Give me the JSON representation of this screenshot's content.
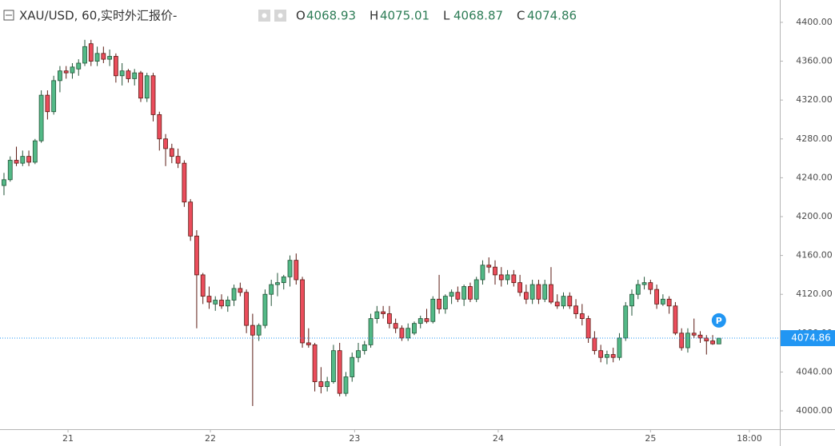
{
  "header": {
    "title": "XAU/USD, 60,实时外汇报价-",
    "ohlc_labels": [
      "O",
      "H",
      "L",
      "C"
    ]
  },
  "chart_data": {
    "type": "candlestick",
    "up_color": "#53b987",
    "down_color": "#eb4d5c",
    "last_price_color": "#2196f3",
    "marker_label": "P",
    "xlim": [
      -0.64,
      124.8
    ],
    "xticks": [
      {
        "value": 10.3,
        "label": "21"
      },
      {
        "value": 33.2,
        "label": "22"
      },
      {
        "value": 56.4,
        "label": "23"
      },
      {
        "value": 79.5,
        "label": "24"
      },
      {
        "value": 104.0,
        "label": "25"
      },
      {
        "value": 119.9,
        "label": "18:00"
      }
    ],
    "ylim": [
      3981.1,
      4423.0
    ],
    "yticks": [
      {
        "value": 4000,
        "label": "4000.00"
      },
      {
        "value": 4040,
        "label": "4040.00"
      },
      {
        "value": 4080,
        "label": "4080.00"
      },
      {
        "value": 4120,
        "label": "4120.00"
      },
      {
        "value": 4160,
        "label": "4160.00"
      },
      {
        "value": 4200,
        "label": "4200.00"
      },
      {
        "value": 4240,
        "label": "4240.00"
      },
      {
        "value": 4280,
        "label": "4280.00"
      },
      {
        "value": 4320,
        "label": "4320.00"
      },
      {
        "value": 4360,
        "label": "4360.00"
      },
      {
        "value": 4400,
        "label": "4400.00"
      }
    ],
    "series": {
      "open": [
        4232,
        4238,
        4258,
        4255,
        4262,
        4256,
        4278,
        4325,
        4308,
        4340,
        4350,
        4348,
        4352,
        4358,
        4378,
        4360,
        4368,
        4362,
        4365,
        4345,
        4350,
        4342,
        4348,
        4322,
        4345,
        4305,
        4280,
        4270,
        4262,
        4255,
        4215,
        4180,
        4140,
        4118,
        4110,
        4114,
        4108,
        4114,
        4126,
        4122,
        4088,
        4078,
        4088,
        4120,
        4130,
        4132,
        4138,
        4155,
        4135,
        4070,
        4068,
        4030,
        4025,
        4030,
        4062,
        4018,
        4035,
        4055,
        4062,
        4068,
        4095,
        4102,
        4100,
        4090,
        4085,
        4075,
        4080,
        4090,
        4095,
        4092,
        4115,
        4105,
        4118,
        4122,
        4115,
        4128,
        4115,
        4135,
        4150,
        4148,
        4140,
        4135,
        4140,
        4132,
        4122,
        4115,
        4130,
        4115,
        4130,
        4112,
        4108,
        4118,
        4108,
        4100,
        4095,
        4075,
        4062,
        4055,
        4058,
        4055,
        4075,
        4108,
        4120,
        4130,
        4132,
        4125,
        4110,
        4115,
        4108,
        4080,
        4065,
        4080,
        4078,
        4075,
        4072,
        4068.93
      ],
      "high": [
        4245,
        4262,
        4272,
        4268,
        4268,
        4280,
        4330,
        4330,
        4345,
        4355,
        4355,
        4358,
        4362,
        4382,
        4382,
        4375,
        4375,
        4372,
        4368,
        4358,
        4352,
        4352,
        4350,
        4348,
        4348,
        4308,
        4285,
        4275,
        4270,
        4258,
        4218,
        4186,
        4142,
        4128,
        4118,
        4120,
        4118,
        4130,
        4132,
        4125,
        4100,
        4090,
        4125,
        4135,
        4142,
        4140,
        4160,
        4162,
        4138,
        4085,
        4070,
        4045,
        4035,
        4068,
        4070,
        4040,
        4060,
        4070,
        4072,
        4100,
        4108,
        4108,
        4108,
        4095,
        4088,
        4090,
        4092,
        4098,
        4105,
        4118,
        4140,
        4120,
        4125,
        4128,
        4130,
        4132,
        4138,
        4155,
        4158,
        4155,
        4148,
        4145,
        4145,
        4140,
        4130,
        4135,
        4135,
        4135,
        4148,
        4120,
        4122,
        4122,
        4115,
        4110,
        4098,
        4082,
        4068,
        4062,
        4065,
        4080,
        4112,
        4125,
        4135,
        4138,
        4135,
        4130,
        4120,
        4118,
        4112,
        4085,
        4085,
        4095,
        4082,
        4078,
        4078,
        4075.01
      ],
      "low": [
        4222,
        4236,
        4252,
        4252,
        4252,
        4254,
        4276,
        4300,
        4305,
        4328,
        4342,
        4342,
        4345,
        4355,
        4355,
        4355,
        4358,
        4355,
        4338,
        4335,
        4338,
        4335,
        4318,
        4318,
        4298,
        4268,
        4252,
        4255,
        4250,
        4210,
        4175,
        4085,
        4110,
        4105,
        4103,
        4105,
        4102,
        4108,
        4118,
        4080,
        4005,
        4072,
        4085,
        4108,
        4118,
        4125,
        4128,
        4130,
        4065,
        4065,
        4020,
        4018,
        4020,
        4028,
        4015,
        4015,
        4030,
        4050,
        4058,
        4065,
        4090,
        4095,
        4085,
        4080,
        4072,
        4072,
        4078,
        4085,
        4090,
        4090,
        4100,
        4100,
        4110,
        4112,
        4108,
        4112,
        4112,
        4130,
        4142,
        4130,
        4128,
        4130,
        4128,
        4118,
        4110,
        4110,
        4110,
        4112,
        4110,
        4105,
        4105,
        4105,
        4095,
        4088,
        4070,
        4058,
        4050,
        4048,
        4050,
        4052,
        4072,
        4098,
        4115,
        4125,
        4120,
        4105,
        4108,
        4100,
        4078,
        4062,
        4060,
        4075,
        4070,
        4058,
        4068,
        4068.87
      ],
      "close": [
        4238,
        4258,
        4255,
        4262,
        4256,
        4278,
        4325,
        4308,
        4340,
        4350,
        4348,
        4354,
        4358,
        4375,
        4360,
        4368,
        4362,
        4365,
        4345,
        4350,
        4342,
        4348,
        4322,
        4345,
        4305,
        4280,
        4270,
        4262,
        4255,
        4215,
        4180,
        4140,
        4118,
        4112,
        4114,
        4108,
        4114,
        4126,
        4122,
        4088,
        4078,
        4088,
        4120,
        4130,
        4132,
        4138,
        4155,
        4135,
        4070,
        4068,
        4030,
        4025,
        4030,
        4062,
        4018,
        4035,
        4055,
        4062,
        4068,
        4095,
        4102,
        4100,
        4090,
        4085,
        4075,
        4085,
        4090,
        4095,
        4092,
        4115,
        4105,
        4118,
        4122,
        4115,
        4128,
        4115,
        4135,
        4150,
        4148,
        4140,
        4135,
        4140,
        4132,
        4122,
        4115,
        4130,
        4115,
        4130,
        4112,
        4108,
        4118,
        4108,
        4100,
        4095,
        4075,
        4062,
        4055,
        4058,
        4055,
        4075,
        4108,
        4120,
        4130,
        4132,
        4125,
        4110,
        4115,
        4108,
        4080,
        4065,
        4080,
        4078,
        4075,
        4072,
        4069,
        4074.86
      ]
    }
  }
}
